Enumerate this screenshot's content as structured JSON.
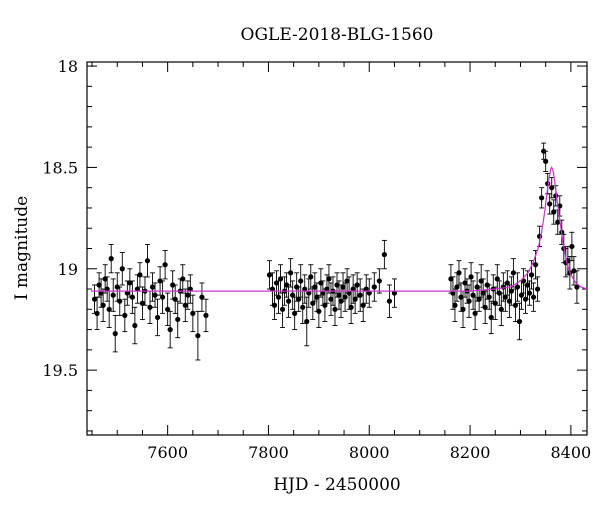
{
  "chart_data": {
    "type": "scatter",
    "title": "OGLE-2018-BLG-1560",
    "xlabel": "HJD - 2450000",
    "ylabel": "I magnitude",
    "xlim": [
      7440,
      8432
    ],
    "ylim": [
      19.82,
      17.98
    ],
    "y_inverted": true,
    "xticks": [
      7600,
      7800,
      8000,
      8200,
      8400
    ],
    "yticks": [
      18,
      18.5,
      19,
      19.5
    ],
    "x_tick_labels": [
      "7600",
      "7800",
      "8000",
      "8200",
      "8400"
    ],
    "y_tick_labels": [
      "18",
      "18.5",
      "19",
      "19.5"
    ],
    "grid": false,
    "colors": {
      "points": "#000000",
      "model": "#cc33cc",
      "errorbars": "#000000"
    },
    "model": {
      "name": "",
      "baseline": 19.11,
      "peak_time": 8362,
      "peak_mag": 18.5,
      "points": [
        [
          7448,
          19.11
        ],
        [
          7500,
          19.11
        ],
        [
          7600,
          19.11
        ],
        [
          7700,
          19.11
        ],
        [
          7800,
          19.11
        ],
        [
          7900,
          19.11
        ],
        [
          8000,
          19.11
        ],
        [
          8100,
          19.11
        ],
        [
          8200,
          19.11
        ],
        [
          8250,
          19.1
        ],
        [
          8280,
          19.09
        ],
        [
          8300,
          19.06
        ],
        [
          8315,
          19.02
        ],
        [
          8325,
          18.97
        ],
        [
          8335,
          18.9
        ],
        [
          8342,
          18.82
        ],
        [
          8348,
          18.72
        ],
        [
          8353,
          18.62
        ],
        [
          8357,
          18.55
        ],
        [
          8360,
          18.51
        ],
        [
          8362,
          18.5
        ],
        [
          8365,
          18.52
        ],
        [
          8368,
          18.57
        ],
        [
          8372,
          18.65
        ],
        [
          8378,
          18.76
        ],
        [
          8385,
          18.88
        ],
        [
          8392,
          18.97
        ],
        [
          8400,
          19.03
        ],
        [
          8410,
          19.07
        ],
        [
          8420,
          19.09
        ],
        [
          8432,
          19.1
        ]
      ]
    },
    "series": [
      {
        "name": "",
        "points": [
          [
            7455,
            19.15,
            0.07
          ],
          [
            7460,
            19.22,
            0.08
          ],
          [
            7464,
            19.08,
            0.06
          ],
          [
            7468,
            19.12,
            0.07
          ],
          [
            7472,
            19.18,
            0.08
          ],
          [
            7476,
            19.05,
            0.07
          ],
          [
            7480,
            19.1,
            0.06
          ],
          [
            7484,
            19.2,
            0.09
          ],
          [
            7488,
            18.95,
            0.07
          ],
          [
            7492,
            19.13,
            0.08
          ],
          [
            7496,
            19.32,
            0.09
          ],
          [
            7500,
            19.09,
            0.07
          ],
          [
            7505,
            19.16,
            0.07
          ],
          [
            7510,
            19.0,
            0.08
          ],
          [
            7515,
            19.23,
            0.08
          ],
          [
            7520,
            19.12,
            0.06
          ],
          [
            7525,
            19.07,
            0.07
          ],
          [
            7530,
            19.14,
            0.08
          ],
          [
            7535,
            19.28,
            0.09
          ],
          [
            7540,
            19.1,
            0.07
          ],
          [
            7545,
            19.03,
            0.06
          ],
          [
            7550,
            19.17,
            0.08
          ],
          [
            7555,
            19.11,
            0.07
          ],
          [
            7560,
            18.96,
            0.08
          ],
          [
            7565,
            19.19,
            0.08
          ],
          [
            7570,
            19.09,
            0.07
          ],
          [
            7575,
            19.13,
            0.06
          ],
          [
            7580,
            19.24,
            0.09
          ],
          [
            7585,
            19.06,
            0.07
          ],
          [
            7590,
            19.14,
            0.08
          ],
          [
            7595,
            18.98,
            0.07
          ],
          [
            7600,
            19.2,
            0.08
          ],
          [
            7605,
            19.3,
            0.09
          ],
          [
            7610,
            19.08,
            0.07
          ],
          [
            7615,
            19.15,
            0.07
          ],
          [
            7620,
            19.25,
            0.09
          ],
          [
            7625,
            19.11,
            0.06
          ],
          [
            7630,
            19.05,
            0.07
          ],
          [
            7635,
            19.18,
            0.08
          ],
          [
            7640,
            19.13,
            0.07
          ],
          [
            7645,
            19.1,
            0.07
          ],
          [
            7650,
            19.22,
            0.09
          ],
          [
            7660,
            19.33,
            0.12
          ],
          [
            7668,
            19.14,
            0.07
          ],
          [
            7676,
            19.23,
            0.08
          ],
          [
            7802,
            19.03,
            0.07
          ],
          [
            7808,
            19.1,
            0.08
          ],
          [
            7812,
            19.18,
            0.07
          ],
          [
            7816,
            19.07,
            0.06
          ],
          [
            7820,
            19.14,
            0.08
          ],
          [
            7824,
            19.05,
            0.07
          ],
          [
            7828,
            19.2,
            0.09
          ],
          [
            7832,
            19.11,
            0.07
          ],
          [
            7836,
            19.08,
            0.06
          ],
          [
            7840,
            19.16,
            0.08
          ],
          [
            7844,
            19.02,
            0.07
          ],
          [
            7848,
            19.13,
            0.07
          ],
          [
            7852,
            19.22,
            0.08
          ],
          [
            7856,
            19.09,
            0.07
          ],
          [
            7860,
            19.15,
            0.06
          ],
          [
            7864,
            19.06,
            0.08
          ],
          [
            7868,
            19.19,
            0.08
          ],
          [
            7872,
            19.1,
            0.07
          ],
          [
            7876,
            19.26,
            0.12
          ],
          [
            7880,
            19.12,
            0.07
          ],
          [
            7884,
            19.04,
            0.06
          ],
          [
            7888,
            19.17,
            0.08
          ],
          [
            7892,
            19.09,
            0.07
          ],
          [
            7896,
            19.14,
            0.07
          ],
          [
            7900,
            19.21,
            0.08
          ],
          [
            7904,
            19.07,
            0.07
          ],
          [
            7908,
            19.12,
            0.06
          ],
          [
            7912,
            19.18,
            0.08
          ],
          [
            7916,
            19.1,
            0.07
          ],
          [
            7920,
            19.05,
            0.07
          ],
          [
            7924,
            19.15,
            0.08
          ],
          [
            7928,
            19.11,
            0.07
          ],
          [
            7932,
            19.2,
            0.08
          ],
          [
            7936,
            19.08,
            0.06
          ],
          [
            7940,
            19.13,
            0.07
          ],
          [
            7944,
            19.16,
            0.08
          ],
          [
            7948,
            19.09,
            0.07
          ],
          [
            7952,
            19.14,
            0.07
          ],
          [
            7956,
            19.06,
            0.06
          ],
          [
            7960,
            19.12,
            0.08
          ],
          [
            7964,
            19.19,
            0.08
          ],
          [
            7968,
            19.1,
            0.07
          ],
          [
            7972,
            19.15,
            0.07
          ],
          [
            7976,
            19.08,
            0.06
          ],
          [
            7982,
            19.13,
            0.08
          ],
          [
            7988,
            19.18,
            0.08
          ],
          [
            7994,
            19.1,
            0.07
          ],
          [
            8000,
            19.12,
            0.07
          ],
          [
            8010,
            19.09,
            0.07
          ],
          [
            8020,
            19.06,
            0.06
          ],
          [
            8030,
            18.93,
            0.07
          ],
          [
            8040,
            19.16,
            0.08
          ],
          [
            8050,
            19.12,
            0.07
          ],
          [
            8162,
            19.05,
            0.07
          ],
          [
            8166,
            19.12,
            0.08
          ],
          [
            8170,
            19.18,
            0.08
          ],
          [
            8174,
            19.09,
            0.07
          ],
          [
            8178,
            19.02,
            0.06
          ],
          [
            8182,
            19.14,
            0.07
          ],
          [
            8186,
            19.2,
            0.09
          ],
          [
            8190,
            19.07,
            0.07
          ],
          [
            8194,
            19.11,
            0.06
          ],
          [
            8198,
            19.16,
            0.08
          ],
          [
            8202,
            19.04,
            0.07
          ],
          [
            8206,
            19.13,
            0.07
          ],
          [
            8210,
            19.22,
            0.08
          ],
          [
            8214,
            19.09,
            0.07
          ],
          [
            8218,
            19.15,
            0.06
          ],
          [
            8222,
            19.06,
            0.08
          ],
          [
            8226,
            19.12,
            0.07
          ],
          [
            8230,
            19.19,
            0.08
          ],
          [
            8234,
            19.08,
            0.07
          ],
          [
            8238,
            19.14,
            0.06
          ],
          [
            8242,
            19.24,
            0.08
          ],
          [
            8246,
            19.1,
            0.07
          ],
          [
            8250,
            19.17,
            0.08
          ],
          [
            8254,
            19.05,
            0.07
          ],
          [
            8258,
            19.12,
            0.06
          ],
          [
            8262,
            19.2,
            0.08
          ],
          [
            8266,
            19.09,
            0.07
          ],
          [
            8270,
            19.14,
            0.07
          ],
          [
            8274,
            19.07,
            0.06
          ],
          [
            8278,
            19.16,
            0.08
          ],
          [
            8282,
            19.11,
            0.07
          ],
          [
            8286,
            19.02,
            0.07
          ],
          [
            8290,
            19.18,
            0.08
          ],
          [
            8294,
            19.09,
            0.07
          ],
          [
            8298,
            19.26,
            0.09
          ],
          [
            8302,
            19.13,
            0.07
          ],
          [
            8306,
            19.06,
            0.06
          ],
          [
            8310,
            19.15,
            0.07
          ],
          [
            8314,
            19.08,
            0.07
          ],
          [
            8318,
            19.12,
            0.06
          ],
          [
            8322,
            19.03,
            0.07
          ],
          [
            8326,
            19.14,
            0.07
          ],
          [
            8330,
            18.98,
            0.07
          ],
          [
            8334,
            19.1,
            0.06
          ],
          [
            8338,
            18.84,
            0.05
          ],
          [
            8342,
            18.65,
            0.05
          ],
          [
            8346,
            18.42,
            0.04
          ],
          [
            8350,
            18.47,
            0.05
          ],
          [
            8354,
            18.58,
            0.05
          ],
          [
            8358,
            18.68,
            0.05
          ],
          [
            8362,
            18.6,
            0.05
          ],
          [
            8366,
            18.72,
            0.06
          ],
          [
            8370,
            18.64,
            0.05
          ],
          [
            8374,
            18.77,
            0.06
          ],
          [
            8378,
            18.69,
            0.05
          ],
          [
            8382,
            18.82,
            0.06
          ],
          [
            8386,
            18.9,
            0.07
          ],
          [
            8390,
            18.97,
            0.07
          ],
          [
            8394,
            18.96,
            0.07
          ],
          [
            8398,
            19.02,
            0.08
          ],
          [
            8402,
            18.89,
            0.07
          ],
          [
            8406,
            19.01,
            0.07
          ],
          [
            8412,
            19.09,
            0.08
          ]
        ]
      }
    ]
  }
}
